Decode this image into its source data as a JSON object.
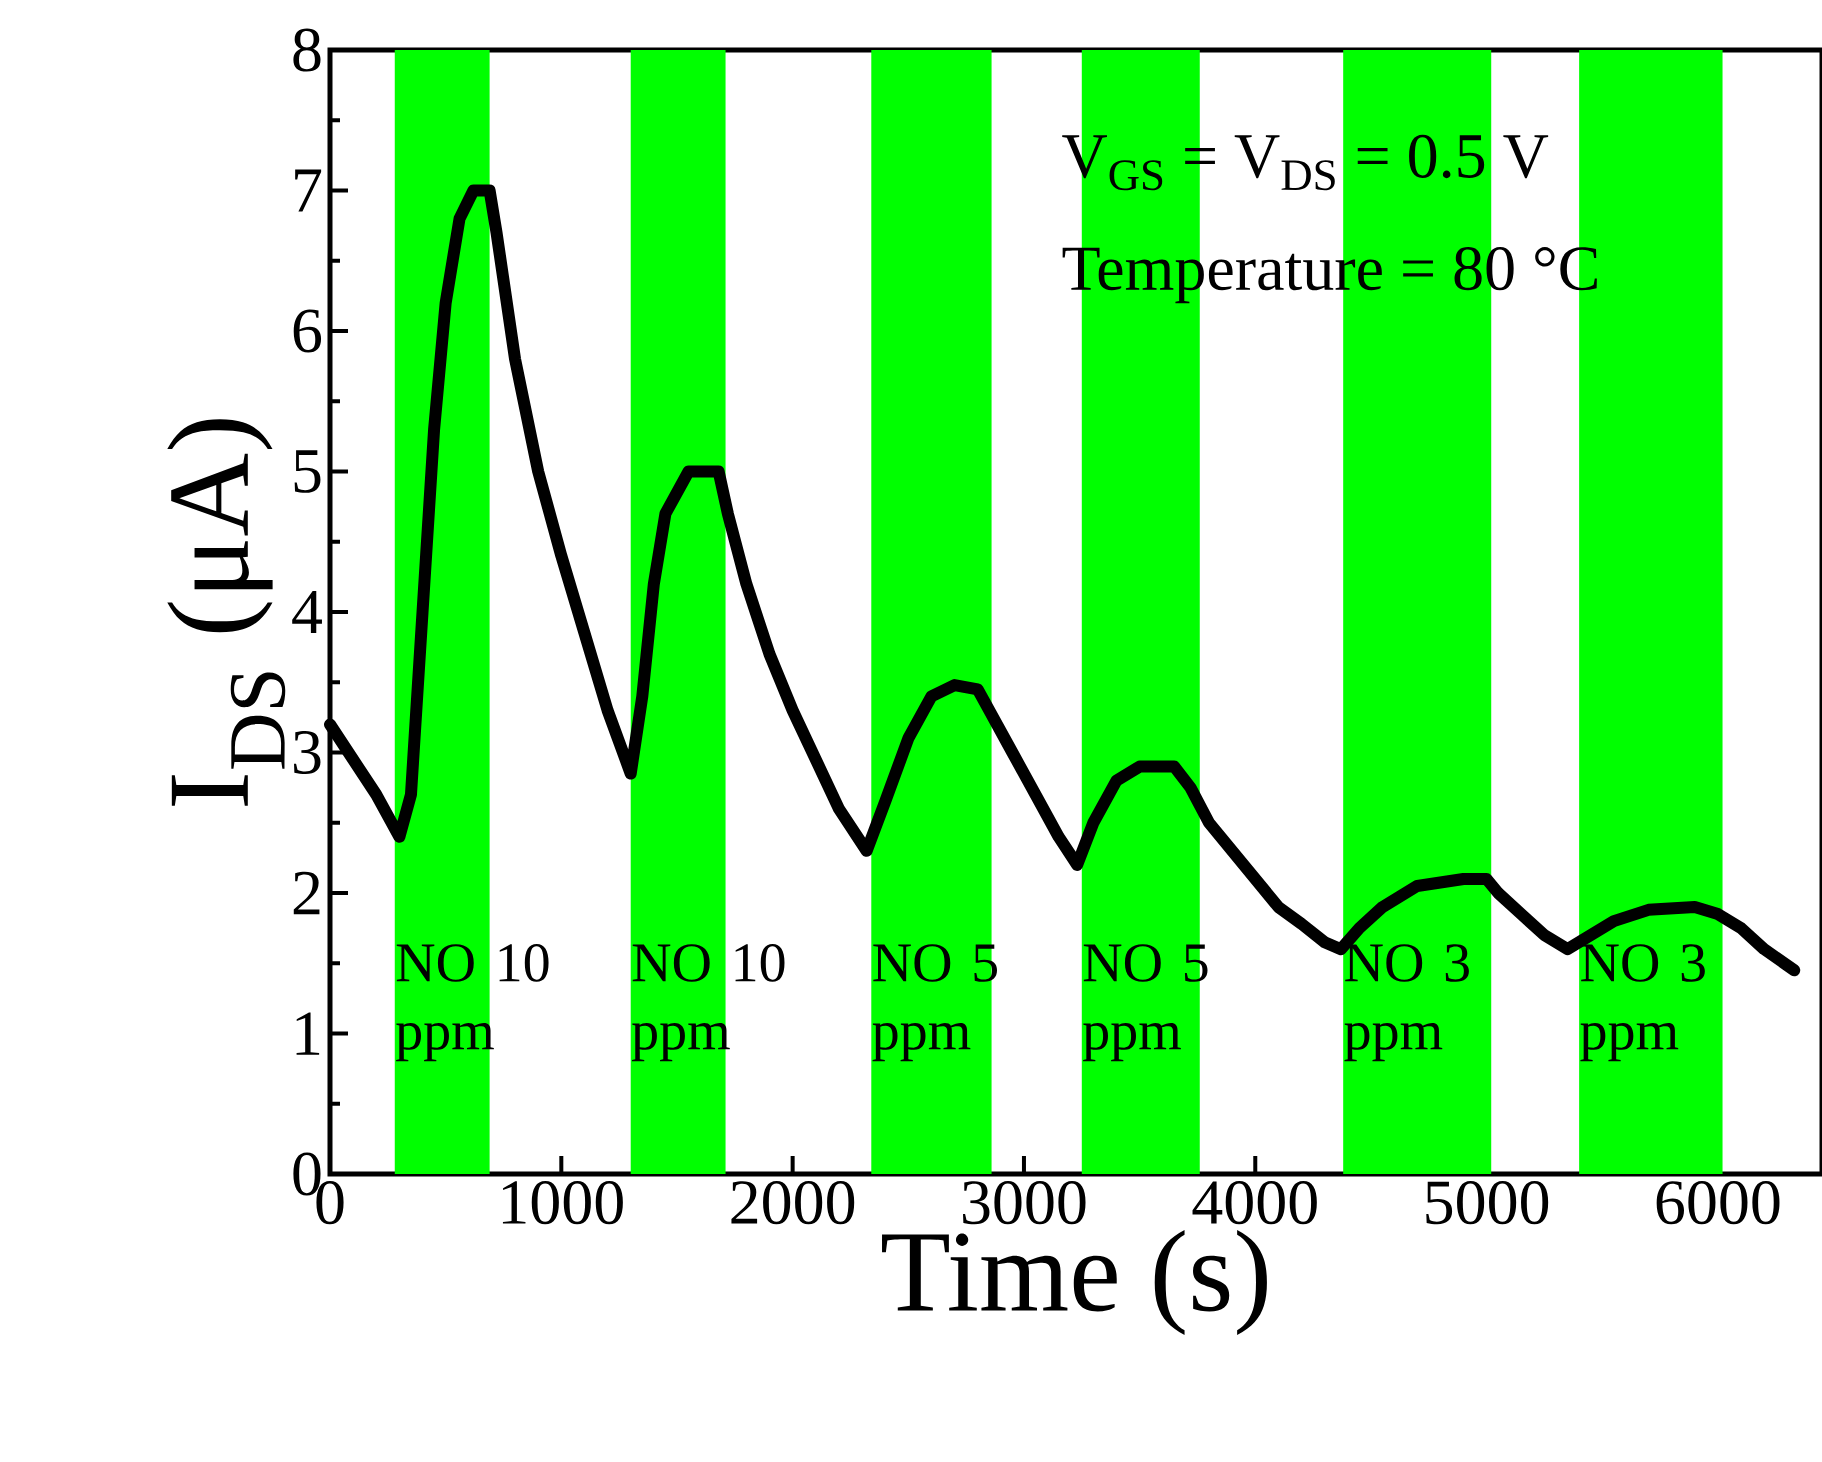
{
  "chart_data": {
    "type": "line",
    "xlabel": "Time (s)",
    "ylabel": "I$_{DS}$ (μA)",
    "annotations": [
      "V$_{GS}$ = V$_{DS}$ = 0.5 V",
      "Temperature = 80 °C"
    ],
    "xlim": [
      0,
      6450
    ],
    "ylim": [
      0,
      8
    ],
    "xticks": [
      0,
      1000,
      2000,
      3000,
      4000,
      5000,
      6000
    ],
    "yticks": [
      0,
      1,
      2,
      3,
      4,
      5,
      6,
      7,
      8
    ],
    "grid": false,
    "marker": "none",
    "line_style": "solid",
    "bands": [
      {
        "axis": "x",
        "from": 280,
        "to": 690,
        "label": "NO 10 ppm",
        "color": "#00ff00"
      },
      {
        "axis": "x",
        "from": 1300,
        "to": 1710,
        "label": "NO 10 ppm",
        "color": "#00ff00"
      },
      {
        "axis": "x",
        "from": 2340,
        "to": 2860,
        "label": "NO 5 ppm",
        "color": "#00ff00"
      },
      {
        "axis": "x",
        "from": 3250,
        "to": 3760,
        "label": "NO 5 ppm",
        "color": "#00ff00"
      },
      {
        "axis": "x",
        "from": 4380,
        "to": 5020,
        "label": "NO 3 ppm",
        "color": "#00ff00"
      },
      {
        "axis": "x",
        "from": 5400,
        "to": 6020,
        "label": "NO 3 ppm",
        "color": "#00ff00"
      }
    ],
    "series": [
      {
        "color": "#000000",
        "x": [
          0,
          100,
          200,
          300,
          350,
          400,
          450,
          500,
          560,
          620,
          690,
          720,
          800,
          900,
          1000,
          1100,
          1200,
          1300,
          1350,
          1400,
          1450,
          1550,
          1680,
          1720,
          1800,
          1900,
          2000,
          2100,
          2200,
          2320,
          2400,
          2500,
          2600,
          2700,
          2800,
          2850,
          2950,
          3050,
          3150,
          3230,
          3300,
          3400,
          3500,
          3650,
          3720,
          3800,
          3900,
          4000,
          4100,
          4200,
          4300,
          4370,
          4450,
          4550,
          4700,
          4900,
          5000,
          5050,
          5150,
          5250,
          5350,
          5450,
          5550,
          5700,
          5900,
          6000,
          6100,
          6200,
          6330
        ],
        "values": [
          3.2,
          2.95,
          2.7,
          2.4,
          2.7,
          4.0,
          5.3,
          6.2,
          6.8,
          7.0,
          7.0,
          6.7,
          5.8,
          5.0,
          4.4,
          3.85,
          3.3,
          2.85,
          3.4,
          4.2,
          4.7,
          5.0,
          5.0,
          4.7,
          4.2,
          3.7,
          3.3,
          2.95,
          2.6,
          2.3,
          2.65,
          3.1,
          3.4,
          3.48,
          3.45,
          3.3,
          3.0,
          2.7,
          2.4,
          2.2,
          2.5,
          2.8,
          2.9,
          2.9,
          2.75,
          2.5,
          2.3,
          2.1,
          1.9,
          1.78,
          1.65,
          1.6,
          1.75,
          1.9,
          2.05,
          2.1,
          2.1,
          2.0,
          1.85,
          1.7,
          1.6,
          1.7,
          1.8,
          1.88,
          1.9,
          1.85,
          1.75,
          1.6,
          1.45
        ]
      }
    ]
  }
}
